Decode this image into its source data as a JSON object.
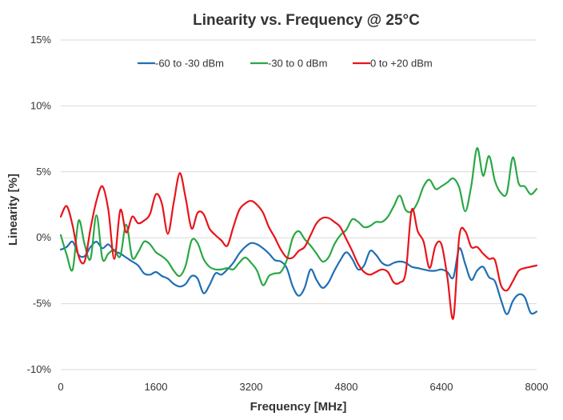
{
  "chart_data": {
    "type": "line",
    "title": "Linearity vs. Frequency @ 25°C",
    "xlabel": "Frequency [MHz]",
    "ylabel": "Linearity [%]",
    "xlim": [
      0,
      8000
    ],
    "ylim": [
      -10,
      15
    ],
    "x_ticks": [
      0,
      1600,
      3200,
      4800,
      6400,
      8000
    ],
    "x_tick_labels": [
      "0",
      "1600",
      "3200",
      "4800",
      "6400",
      "8000"
    ],
    "y_ticks": [
      -10,
      -5,
      0,
      5,
      10,
      15
    ],
    "y_tick_labels": [
      "-10%",
      "-5%",
      "0%",
      "5%",
      "10%",
      "15%"
    ],
    "grid": "horizontal",
    "legend_position": "top",
    "series": [
      {
        "name": "-60 to -30 dBm",
        "color": "#1f6fb4",
        "points": [
          [
            0,
            -0.9
          ],
          [
            100,
            -0.7
          ],
          [
            200,
            -0.3
          ],
          [
            300,
            -1.3
          ],
          [
            400,
            -1.4
          ],
          [
            500,
            -0.7
          ],
          [
            600,
            -0.3
          ],
          [
            700,
            -0.8
          ],
          [
            800,
            -0.5
          ],
          [
            900,
            -1.0
          ],
          [
            1000,
            -1.2
          ],
          [
            1100,
            -1.5
          ],
          [
            1200,
            -1.8
          ],
          [
            1300,
            -2.1
          ],
          [
            1400,
            -2.7
          ],
          [
            1500,
            -2.8
          ],
          [
            1600,
            -2.6
          ],
          [
            1700,
            -2.9
          ],
          [
            1800,
            -3.1
          ],
          [
            1900,
            -3.5
          ],
          [
            2000,
            -3.7
          ],
          [
            2100,
            -3.5
          ],
          [
            2200,
            -2.9
          ],
          [
            2300,
            -3.1
          ],
          [
            2400,
            -4.2
          ],
          [
            2500,
            -3.6
          ],
          [
            2600,
            -2.7
          ],
          [
            2700,
            -2.8
          ],
          [
            2800,
            -2.4
          ],
          [
            2900,
            -1.9
          ],
          [
            3000,
            -1.2
          ],
          [
            3100,
            -0.7
          ],
          [
            3200,
            -0.4
          ],
          [
            3300,
            -0.5
          ],
          [
            3400,
            -0.8
          ],
          [
            3500,
            -1.2
          ],
          [
            3600,
            -1.7
          ],
          [
            3700,
            -1.8
          ],
          [
            3800,
            -2.3
          ],
          [
            3900,
            -3.7
          ],
          [
            4000,
            -4.4
          ],
          [
            4100,
            -3.8
          ],
          [
            4200,
            -2.4
          ],
          [
            4300,
            -3.2
          ],
          [
            4400,
            -3.8
          ],
          [
            4500,
            -3.4
          ],
          [
            4600,
            -2.5
          ],
          [
            4700,
            -1.7
          ],
          [
            4800,
            -1.1
          ],
          [
            4900,
            -1.6
          ],
          [
            5000,
            -2.4
          ],
          [
            5100,
            -2.1
          ],
          [
            5200,
            -1.0
          ],
          [
            5300,
            -1.3
          ],
          [
            5400,
            -1.9
          ],
          [
            5500,
            -2.1
          ],
          [
            5600,
            -1.9
          ],
          [
            5700,
            -1.8
          ],
          [
            5800,
            -1.9
          ],
          [
            5900,
            -2.2
          ],
          [
            6000,
            -2.3
          ],
          [
            6100,
            -2.4
          ],
          [
            6200,
            -2.5
          ],
          [
            6300,
            -2.5
          ],
          [
            6400,
            -2.4
          ],
          [
            6500,
            -2.6
          ],
          [
            6600,
            -3.0
          ],
          [
            6700,
            -0.8
          ],
          [
            6800,
            -2.0
          ],
          [
            6900,
            -3.2
          ],
          [
            7000,
            -2.5
          ],
          [
            7100,
            -2.2
          ],
          [
            7200,
            -3.0
          ],
          [
            7300,
            -3.3
          ],
          [
            7400,
            -4.7
          ],
          [
            7500,
            -5.8
          ],
          [
            7600,
            -4.8
          ],
          [
            7700,
            -4.3
          ],
          [
            7800,
            -4.5
          ],
          [
            7900,
            -5.7
          ],
          [
            8000,
            -5.6
          ]
        ]
      },
      {
        "name": "-30 to 0 dBm",
        "color": "#2aa845",
        "points": [
          [
            0,
            0.2
          ],
          [
            100,
            -1.3
          ],
          [
            200,
            -2.4
          ],
          [
            300,
            1.3
          ],
          [
            400,
            -0.5
          ],
          [
            500,
            -1.6
          ],
          [
            600,
            1.7
          ],
          [
            700,
            -1.6
          ],
          [
            800,
            -1.2
          ],
          [
            900,
            -0.9
          ],
          [
            1000,
            -1.4
          ],
          [
            1100,
            1.0
          ],
          [
            1200,
            -1.5
          ],
          [
            1300,
            -1.1
          ],
          [
            1400,
            -0.3
          ],
          [
            1500,
            -0.5
          ],
          [
            1600,
            -1.1
          ],
          [
            1700,
            -1.4
          ],
          [
            1800,
            -1.8
          ],
          [
            1900,
            -2.5
          ],
          [
            2000,
            -2.9
          ],
          [
            2100,
            -2.1
          ],
          [
            2200,
            -0.2
          ],
          [
            2300,
            -0.4
          ],
          [
            2400,
            -1.6
          ],
          [
            2500,
            -2.2
          ],
          [
            2600,
            -2.4
          ],
          [
            2700,
            -2.4
          ],
          [
            2800,
            -2.3
          ],
          [
            2900,
            -2.4
          ],
          [
            3000,
            -1.9
          ],
          [
            3100,
            -1.5
          ],
          [
            3200,
            -1.9
          ],
          [
            3300,
            -2.5
          ],
          [
            3400,
            -3.6
          ],
          [
            3500,
            -2.9
          ],
          [
            3600,
            -2.7
          ],
          [
            3700,
            -2.6
          ],
          [
            3800,
            -1.7
          ],
          [
            3900,
            0.0
          ],
          [
            4000,
            0.5
          ],
          [
            4100,
            -0.1
          ],
          [
            4200,
            -0.6
          ],
          [
            4300,
            -1.2
          ],
          [
            4400,
            -1.8
          ],
          [
            4500,
            -1.5
          ],
          [
            4600,
            -0.5
          ],
          [
            4700,
            0.2
          ],
          [
            4800,
            0.6
          ],
          [
            4900,
            1.4
          ],
          [
            5000,
            1.2
          ],
          [
            5100,
            0.8
          ],
          [
            5200,
            0.9
          ],
          [
            5300,
            1.2
          ],
          [
            5400,
            1.2
          ],
          [
            5500,
            1.6
          ],
          [
            5600,
            2.4
          ],
          [
            5700,
            3.2
          ],
          [
            5800,
            2.1
          ],
          [
            5900,
            2.0
          ],
          [
            6000,
            2.7
          ],
          [
            6100,
            3.9
          ],
          [
            6200,
            4.4
          ],
          [
            6300,
            3.7
          ],
          [
            6400,
            3.9
          ],
          [
            6500,
            4.2
          ],
          [
            6600,
            4.5
          ],
          [
            6700,
            3.8
          ],
          [
            6800,
            2.0
          ],
          [
            6900,
            3.9
          ],
          [
            7000,
            6.8
          ],
          [
            7100,
            4.7
          ],
          [
            7200,
            6.2
          ],
          [
            7300,
            4.3
          ],
          [
            7400,
            3.4
          ],
          [
            7500,
            3.4
          ],
          [
            7600,
            6.1
          ],
          [
            7700,
            4.1
          ],
          [
            7800,
            3.9
          ],
          [
            7900,
            3.3
          ],
          [
            8000,
            3.7
          ]
        ]
      },
      {
        "name": "0 to +20 dBm",
        "color": "#e8141b",
        "points": [
          [
            0,
            1.6
          ],
          [
            100,
            2.4
          ],
          [
            200,
            0.9
          ],
          [
            300,
            -1.4
          ],
          [
            400,
            -1.8
          ],
          [
            500,
            0.7
          ],
          [
            600,
            2.8
          ],
          [
            700,
            3.9
          ],
          [
            800,
            2.1
          ],
          [
            900,
            -1.6
          ],
          [
            1000,
            2.1
          ],
          [
            1100,
            0.4
          ],
          [
            1200,
            1.6
          ],
          [
            1300,
            1.1
          ],
          [
            1400,
            1.3
          ],
          [
            1500,
            1.8
          ],
          [
            1600,
            3.3
          ],
          [
            1700,
            2.6
          ],
          [
            1800,
            0.3
          ],
          [
            1900,
            2.7
          ],
          [
            2000,
            4.9
          ],
          [
            2100,
            3.0
          ],
          [
            2200,
            0.7
          ],
          [
            2300,
            1.9
          ],
          [
            2400,
            1.8
          ],
          [
            2500,
            0.7
          ],
          [
            2600,
            0.2
          ],
          [
            2700,
            -0.2
          ],
          [
            2800,
            -0.6
          ],
          [
            2900,
            0.8
          ],
          [
            3000,
            2.1
          ],
          [
            3100,
            2.6
          ],
          [
            3200,
            2.8
          ],
          [
            3300,
            2.5
          ],
          [
            3400,
            1.9
          ],
          [
            3500,
            0.8
          ],
          [
            3600,
            0.0
          ],
          [
            3700,
            -0.9
          ],
          [
            3800,
            -1.5
          ],
          [
            3900,
            -1.5
          ],
          [
            4000,
            -1.0
          ],
          [
            4100,
            -0.7
          ],
          [
            4200,
            0.2
          ],
          [
            4300,
            1.1
          ],
          [
            4400,
            1.5
          ],
          [
            4500,
            1.5
          ],
          [
            4600,
            1.2
          ],
          [
            4700,
            0.8
          ],
          [
            4800,
            -0.1
          ],
          [
            4900,
            -1.0
          ],
          [
            5000,
            -2.0
          ],
          [
            5100,
            -2.6
          ],
          [
            5200,
            -2.8
          ],
          [
            5300,
            -2.6
          ],
          [
            5400,
            -2.4
          ],
          [
            5500,
            -2.6
          ],
          [
            5600,
            -3.4
          ],
          [
            5700,
            -3.4
          ],
          [
            5800,
            -2.6
          ],
          [
            5900,
            2.1
          ],
          [
            6000,
            0.5
          ],
          [
            6100,
            -0.3
          ],
          [
            6200,
            -2.3
          ],
          [
            6300,
            -0.6
          ],
          [
            6400,
            -0.5
          ],
          [
            6500,
            -3.0
          ],
          [
            6600,
            -6.1
          ],
          [
            6700,
            0.1
          ],
          [
            6800,
            0.5
          ],
          [
            6900,
            -0.7
          ],
          [
            7000,
            -0.7
          ],
          [
            7100,
            -1.2
          ],
          [
            7200,
            -1.6
          ],
          [
            7300,
            -1.7
          ],
          [
            7400,
            -3.6
          ],
          [
            7500,
            -4.0
          ],
          [
            7600,
            -3.3
          ],
          [
            7700,
            -2.5
          ],
          [
            7800,
            -2.3
          ],
          [
            7900,
            -2.2
          ],
          [
            8000,
            -2.1
          ]
        ]
      }
    ]
  }
}
